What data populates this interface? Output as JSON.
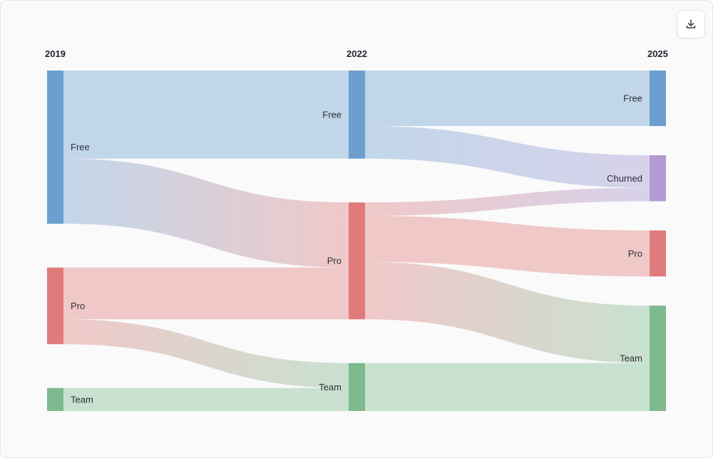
{
  "toolbar": {
    "download_icon": "download-icon"
  },
  "chart_data": {
    "type": "sankey",
    "columns": [
      "2019",
      "2022",
      "2025"
    ],
    "colors": {
      "Free": "#6c9fcf",
      "Pro": "#e07b7b",
      "Team": "#7dba8d",
      "Churned": "#b39ad2"
    },
    "link_colors": {
      "Free": "#c2d6ea",
      "Pro": "#f0c8c8",
      "Team": "#c8e1d0",
      "Churned": "#d7d2ea"
    },
    "nodes": [
      {
        "id": "2019-Free",
        "column": 0,
        "name": "Free"
      },
      {
        "id": "2019-Pro",
        "column": 0,
        "name": "Pro"
      },
      {
        "id": "2019-Team",
        "column": 0,
        "name": "Team"
      },
      {
        "id": "2022-Free",
        "column": 1,
        "name": "Free"
      },
      {
        "id": "2022-Pro",
        "column": 1,
        "name": "Pro"
      },
      {
        "id": "2022-Team",
        "column": 1,
        "name": "Team"
      },
      {
        "id": "2025-Free",
        "column": 2,
        "name": "Free"
      },
      {
        "id": "2025-Churned",
        "column": 2,
        "name": "Churned"
      },
      {
        "id": "2025-Pro",
        "column": 2,
        "name": "Pro"
      },
      {
        "id": "2025-Team",
        "column": 2,
        "name": "Team"
      }
    ],
    "links": [
      {
        "source": "2019-Free",
        "target": "2022-Free",
        "value": 46
      },
      {
        "source": "2019-Free",
        "target": "2022-Pro",
        "value": 34
      },
      {
        "source": "2019-Pro",
        "target": "2022-Pro",
        "value": 27
      },
      {
        "source": "2019-Pro",
        "target": "2022-Team",
        "value": 13
      },
      {
        "source": "2019-Team",
        "target": "2022-Team",
        "value": 12
      },
      {
        "source": "2022-Free",
        "target": "2025-Free",
        "value": 29
      },
      {
        "source": "2022-Free",
        "target": "2025-Churned",
        "value": 17
      },
      {
        "source": "2022-Pro",
        "target": "2025-Churned",
        "value": 7
      },
      {
        "source": "2022-Pro",
        "target": "2025-Pro",
        "value": 24
      },
      {
        "source": "2022-Pro",
        "target": "2025-Team",
        "value": 30
      },
      {
        "source": "2022-Team",
        "target": "2025-Team",
        "value": 25
      }
    ]
  }
}
